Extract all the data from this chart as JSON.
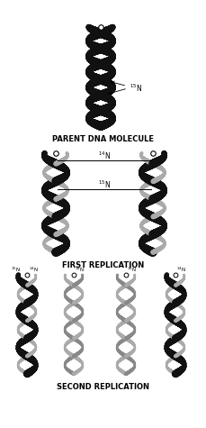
{
  "bg_color": "#ffffff",
  "text_color": "#000000",
  "title_fontsize": 6.0,
  "label_fontsize": 5.0,
  "annot_fontsize": 5.5,
  "parent_label": "PARENT DNA MOLECULE",
  "first_label": "FIRST REPLICATION",
  "second_label": "SECOND REPLICATION",
  "label_14N": "$^{14}$N",
  "label_15N": "$^{15}$N"
}
